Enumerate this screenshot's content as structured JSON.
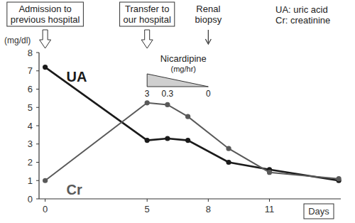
{
  "chart_data": {
    "type": "line",
    "y_label": "(mg/dl)",
    "x_label": "Days",
    "xlim": [
      -0.3,
      14.5
    ],
    "xticks": [
      0,
      5,
      8,
      11
    ],
    "ylim": [
      0,
      8
    ],
    "yticks": [
      0,
      1,
      2,
      3,
      4,
      5,
      6,
      7,
      8
    ],
    "marker": "circle",
    "series": [
      {
        "name": "UA",
        "color": "#1a1a1a",
        "x": [
          0,
          5,
          6,
          7,
          9,
          11,
          14.4
        ],
        "values": [
          7.2,
          3.2,
          3.3,
          3.2,
          2.0,
          1.6,
          1.0
        ]
      },
      {
        "name": "Cr",
        "color": "#595959",
        "x": [
          0,
          5,
          6,
          7,
          9,
          11,
          14.4
        ],
        "values": [
          1.0,
          5.25,
          5.15,
          4.5,
          2.75,
          1.45,
          1.1
        ]
      }
    ],
    "events": [
      {
        "label": [
          "Admission to",
          "previous hospital"
        ],
        "x": 0,
        "boxed": true
      },
      {
        "label": [
          "Transfer to",
          "our hospital"
        ],
        "x": 5,
        "boxed": true
      },
      {
        "label": [
          "Renal",
          "biopsy"
        ],
        "x": 8,
        "boxed": false
      }
    ],
    "notes": [
      "UA: uric acid",
      "Cr: creatinine"
    ],
    "nicardipine": {
      "label": "Nicardipine",
      "unit": "(mg/hr)",
      "x": [
        5,
        6,
        8
      ],
      "doses": [
        3,
        0.3,
        0
      ]
    }
  }
}
